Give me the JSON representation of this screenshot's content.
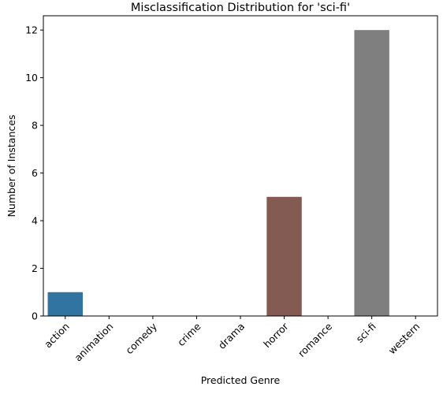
{
  "chart_data": {
    "type": "bar",
    "title": "Misclassification Distribution for 'sci-fi'",
    "xlabel": "Predicted Genre",
    "ylabel": "Number of Instances",
    "categories": [
      "action",
      "animation",
      "comedy",
      "crime",
      "drama",
      "horror",
      "romance",
      "sci-fi",
      "western"
    ],
    "values": [
      1,
      0,
      0,
      0,
      0,
      5,
      0,
      12,
      0
    ],
    "colors": [
      "#3274a1",
      "#e1812c",
      "#3a923a",
      "#c03d3e",
      "#9372b2",
      "#845b53",
      "#d684bd",
      "#7f7f7f",
      "#a9aa35"
    ],
    "ylim": [
      0,
      12.6
    ],
    "yticks": [
      0,
      2,
      4,
      6,
      8,
      10,
      12
    ],
    "ytick_labels": [
      "0",
      "2",
      "4",
      "6",
      "8",
      "10",
      "12"
    ],
    "grid": false,
    "legend": "none"
  }
}
